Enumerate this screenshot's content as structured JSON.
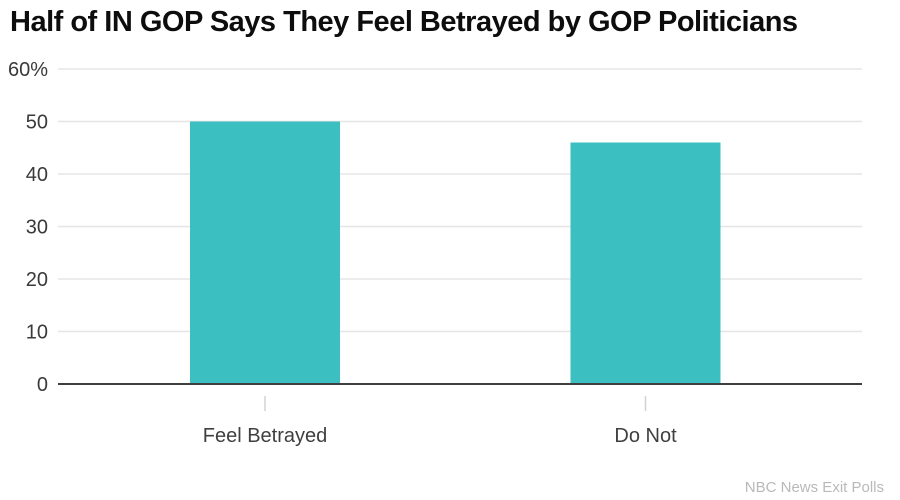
{
  "title": "Half of IN GOP Says They Feel Betrayed by GOP Politicians",
  "source": "NBC News Exit Polls",
  "chart_data": {
    "type": "bar",
    "title": "Half of IN GOP Says They Feel Betrayed by GOP Politicians",
    "categories": [
      "Feel Betrayed",
      "Do Not"
    ],
    "values": [
      50,
      46
    ],
    "xlabel": "",
    "ylabel": "",
    "ylim": [
      0,
      60
    ],
    "yticks": [
      0,
      10,
      20,
      30,
      40,
      50,
      60
    ],
    "ytick_labels": [
      "0",
      "10",
      "20",
      "30",
      "40",
      "50",
      "60%"
    ],
    "grid": true,
    "legend": false,
    "bar_color": "#3cbfc1",
    "gridline_color": "#e5e5e5",
    "axis_color": "#3f3f3f",
    "tick_label_color": "#3a3a3a",
    "category_label_color": "#3f3f3f",
    "category_tick_color": "#d2d2d2",
    "source_color": "#b9b9b9"
  }
}
